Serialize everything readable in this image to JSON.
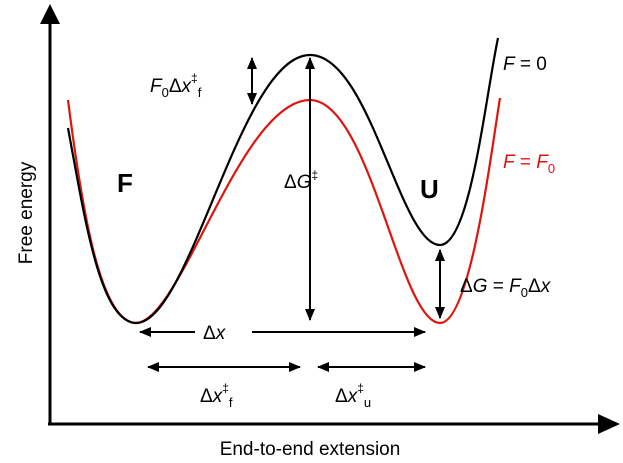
{
  "axes": {
    "x_label": "End-to-end extension",
    "y_label": "Free energy"
  },
  "curves": [
    {
      "label_var": "F",
      "label_rest": " = 0",
      "color": "#000000"
    },
    {
      "label_var": "F",
      "label_mid": " = ",
      "label_var2": "F",
      "label_sub": "0",
      "color": "#e0140f"
    }
  ],
  "states": {
    "folded": "F",
    "unfolded": "U"
  },
  "annotations": {
    "barrier": {
      "delta": "Δ",
      "var": "G",
      "sup": "‡"
    },
    "work_f": {
      "var": "F",
      "sub0": "0",
      "delta": "Δ",
      "x": "x",
      "sup": "‡",
      "sub": "f"
    },
    "delta_g": {
      "lhs_delta": "Δ",
      "lhs_var": "G",
      "eq": " = ",
      "var": "F",
      "sub": "0",
      "rhs_delta": "Δ",
      "rhs_var": "x"
    },
    "delta_x": {
      "delta": "Δ",
      "var": "x"
    },
    "delta_x_f": {
      "delta": "Δ",
      "var": "x",
      "sup": "‡",
      "sub": "f"
    },
    "delta_x_u": {
      "delta": "Δ",
      "var": "x",
      "sup": "‡",
      "sub": "u"
    }
  }
}
